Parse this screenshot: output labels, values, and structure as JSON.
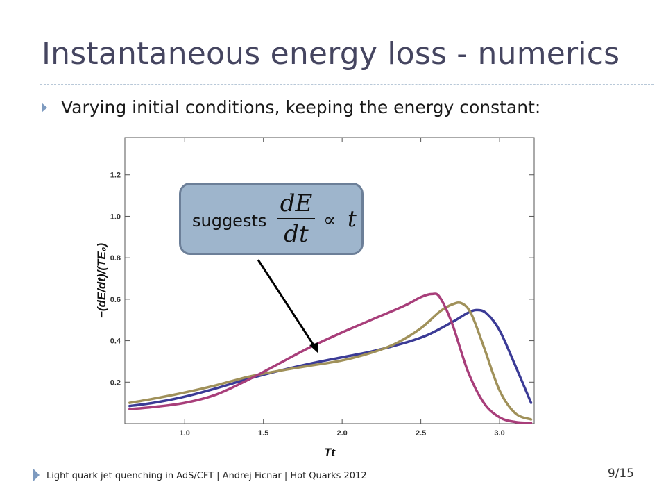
{
  "slide": {
    "title": "Instantaneous energy loss - numerics",
    "bullet": "Varying initial conditions, keeping the energy constant:",
    "footer": "Light quark jet quenching in AdS/CFT  |  Andrej Ficnar  |  Hot Quarks 2012",
    "page_number": "9/15"
  },
  "callout": {
    "word": "suggests",
    "numerator": "dE",
    "denominator": "dt",
    "relation": "∝",
    "variable": "t"
  },
  "chart_data": {
    "type": "line",
    "xlabel": "Tt",
    "ylabel": "−(dE/dt)/(TE₀)",
    "xlim": [
      0.62,
      3.22
    ],
    "ylim": [
      0.0,
      1.38
    ],
    "x_ticks": [
      1.0,
      1.5,
      2.0,
      2.5,
      3.0
    ],
    "x_tick_labels": [
      "1.0",
      "1.5",
      "2.0",
      "2.5",
      "3.0"
    ],
    "y_ticks": [
      0.2,
      0.4,
      0.6,
      0.8,
      1.0,
      1.2
    ],
    "y_tick_labels": [
      "0.2",
      "0.4",
      "0.6",
      "0.8",
      "1.0",
      "1.2"
    ],
    "grid": false,
    "series": [
      {
        "color": "#3b3b96",
        "points": [
          [
            0.65,
            0.085
          ],
          [
            0.8,
            0.1
          ],
          [
            1.0,
            0.13
          ],
          [
            1.2,
            0.17
          ],
          [
            1.4,
            0.215
          ],
          [
            1.6,
            0.255
          ],
          [
            1.8,
            0.29
          ],
          [
            2.0,
            0.32
          ],
          [
            2.2,
            0.35
          ],
          [
            2.4,
            0.39
          ],
          [
            2.55,
            0.43
          ],
          [
            2.7,
            0.49
          ],
          [
            2.8,
            0.535
          ],
          [
            2.86,
            0.548
          ],
          [
            2.92,
            0.53
          ],
          [
            3.0,
            0.45
          ],
          [
            3.1,
            0.28
          ],
          [
            3.2,
            0.1
          ]
        ]
      },
      {
        "color": "#a0915a",
        "points": [
          [
            0.65,
            0.1
          ],
          [
            0.8,
            0.12
          ],
          [
            1.0,
            0.15
          ],
          [
            1.2,
            0.185
          ],
          [
            1.4,
            0.225
          ],
          [
            1.6,
            0.255
          ],
          [
            1.8,
            0.28
          ],
          [
            2.0,
            0.305
          ],
          [
            2.2,
            0.345
          ],
          [
            2.35,
            0.39
          ],
          [
            2.5,
            0.46
          ],
          [
            2.62,
            0.54
          ],
          [
            2.7,
            0.575
          ],
          [
            2.76,
            0.58
          ],
          [
            2.82,
            0.53
          ],
          [
            2.9,
            0.37
          ],
          [
            3.0,
            0.16
          ],
          [
            3.1,
            0.05
          ],
          [
            3.2,
            0.02
          ]
        ]
      },
      {
        "color": "#a83e7a",
        "points": [
          [
            0.65,
            0.07
          ],
          [
            0.8,
            0.08
          ],
          [
            1.0,
            0.1
          ],
          [
            1.2,
            0.14
          ],
          [
            1.4,
            0.21
          ],
          [
            1.6,
            0.29
          ],
          [
            1.8,
            0.37
          ],
          [
            2.0,
            0.44
          ],
          [
            2.2,
            0.505
          ],
          [
            2.4,
            0.57
          ],
          [
            2.5,
            0.61
          ],
          [
            2.57,
            0.625
          ],
          [
            2.62,
            0.61
          ],
          [
            2.7,
            0.48
          ],
          [
            2.8,
            0.25
          ],
          [
            2.9,
            0.1
          ],
          [
            3.0,
            0.03
          ],
          [
            3.1,
            0.008
          ],
          [
            3.2,
            0.003
          ]
        ]
      }
    ]
  }
}
